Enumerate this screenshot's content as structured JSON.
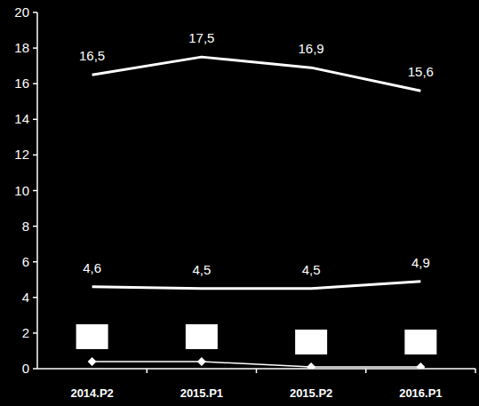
{
  "chart_data": {
    "type": "line",
    "categories": [
      "2014.P2",
      "2015.P1",
      "2015.P2",
      "2016.P1"
    ],
    "series": [
      {
        "color": "#ffffff",
        "values": [
          16.5,
          17.5,
          16.9,
          15.6
        ],
        "value_labels": [
          "16,5",
          "17,5",
          "16,9",
          "15,6"
        ],
        "data_labels": true,
        "marker": "none"
      },
      {
        "color": "#ffffff",
        "values": [
          4.6,
          4.5,
          4.5,
          4.9
        ],
        "value_labels": [
          "4,6",
          "4,5",
          "4,5",
          "4,9"
        ],
        "data_labels": true,
        "marker": "none"
      },
      {
        "color": "#ffffff",
        "values": [
          0.4,
          0.4,
          0.1,
          0.1
        ],
        "data_labels": false,
        "marker": "diamond"
      }
    ],
    "ylim": [
      0,
      20
    ],
    "yticks": [
      0,
      2,
      4,
      6,
      8,
      10,
      12,
      14,
      16,
      18,
      20
    ],
    "grid": false
  }
}
